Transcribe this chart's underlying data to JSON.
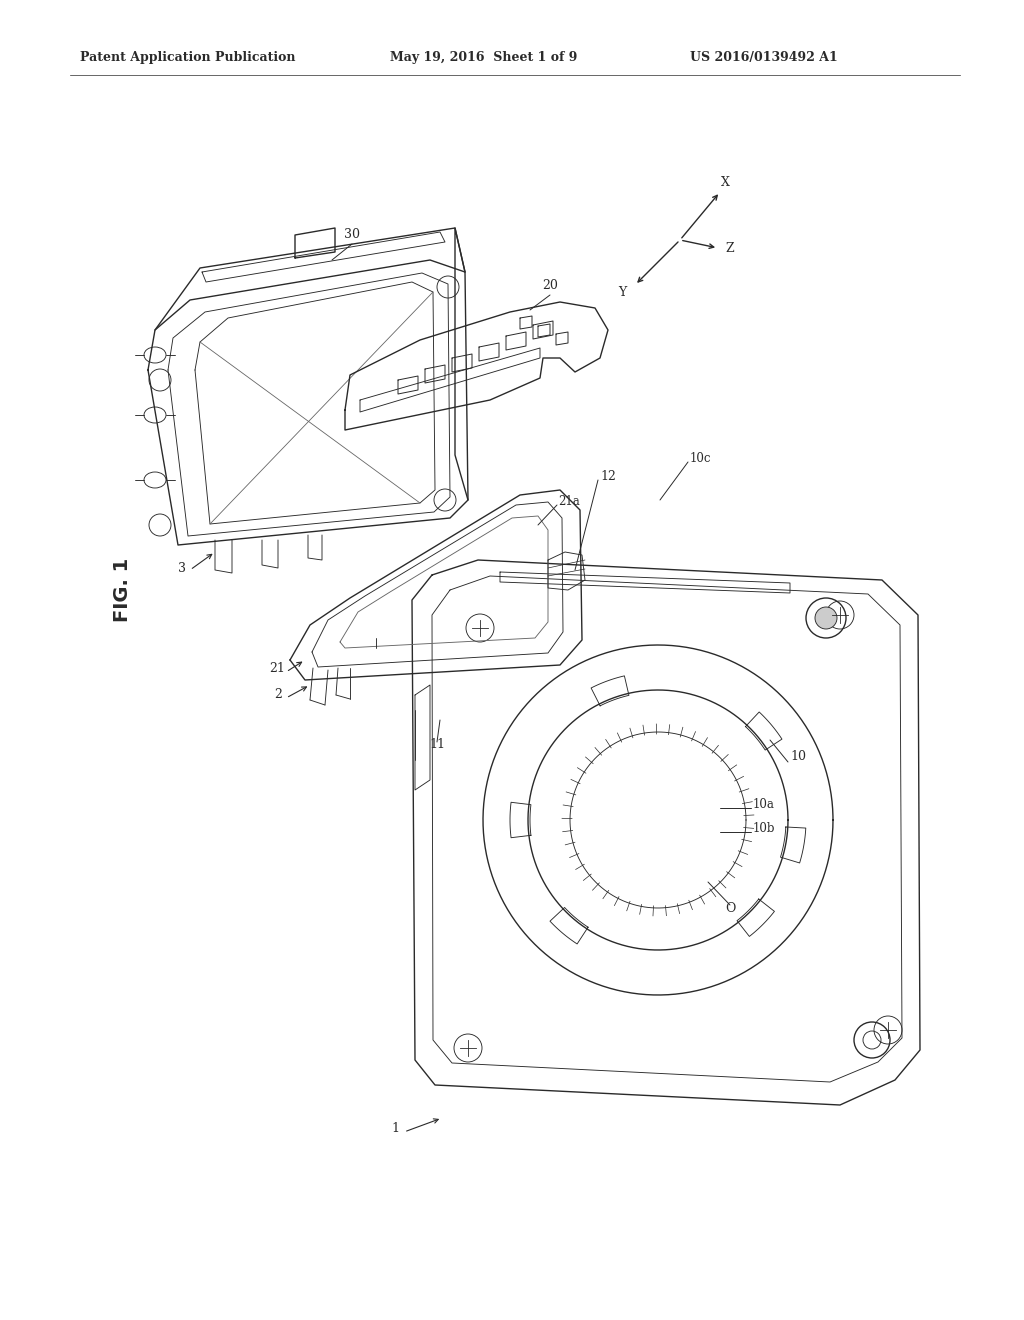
{
  "bg_color": "#ffffff",
  "header_left": "Patent Application Publication",
  "header_mid": "May 19, 2016  Sheet 1 of 9",
  "header_right": "US 2016/0139492 A1",
  "fig_label": "FIG. 1",
  "line_color": "#2a2a2a",
  "line_color_light": "#666666",
  "lw_main": 1.0,
  "lw_thin": 0.65,
  "lw_heavy": 1.4
}
